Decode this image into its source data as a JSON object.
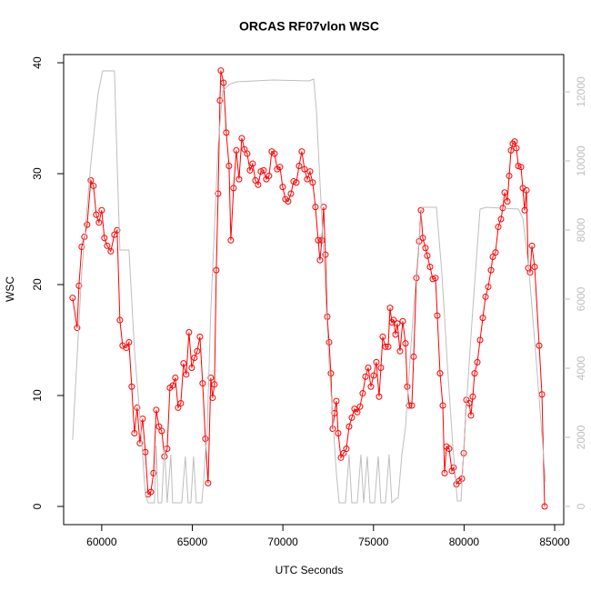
{
  "chart_data": {
    "type": "line",
    "title": "ORCAS RF07vlon WSC",
    "xlabel": "UTC Seconds",
    "ylabel": "WSC",
    "xlim": [
      57900,
      85500
    ],
    "ylim": [
      -1.64,
      40.74
    ],
    "y2lim": [
      -526,
      13079
    ],
    "xticks": [
      60000,
      65000,
      70000,
      75000,
      80000,
      85000
    ],
    "yticks": [
      0,
      10,
      20,
      30,
      40
    ],
    "y2ticks": [
      0,
      2000,
      4000,
      6000,
      8000,
      10000,
      12000
    ],
    "series": [
      {
        "color": "#ff0000",
        "marker": "circle",
        "x": [
          58394,
          58645,
          58745,
          58896,
          59046,
          59197,
          59398,
          59548,
          59699,
          59849,
          60000,
          60151,
          60301,
          60502,
          60703,
          60853,
          61004,
          61155,
          61355,
          61506,
          61657,
          61807,
          61958,
          62108,
          62259,
          62410,
          62560,
          62711,
          62861,
          63012,
          63163,
          63313,
          63464,
          63614,
          63765,
          63916,
          64066,
          64217,
          64367,
          64518,
          64669,
          64819,
          64970,
          65120,
          65271,
          65422,
          65572,
          65723,
          65873,
          66024,
          66124,
          66225,
          66325,
          66426,
          66526,
          66576,
          66727,
          66877,
          67028,
          67128,
          67279,
          67430,
          67580,
          67731,
          67881,
          68032,
          68183,
          68333,
          68484,
          68634,
          68785,
          68936,
          69086,
          69237,
          69387,
          69538,
          69689,
          69839,
          69990,
          70140,
          70291,
          70442,
          70592,
          70743,
          70893,
          71044,
          71195,
          71345,
          71496,
          71646,
          71797,
          71948,
          72048,
          72148,
          72249,
          72349,
          72450,
          72550,
          72650,
          72751,
          72851,
          72952,
          73052,
          73203,
          73353,
          73504,
          73654,
          73805,
          73956,
          74106,
          74257,
          74407,
          74558,
          74709,
          74859,
          75010,
          75160,
          75311,
          75411,
          75512,
          75662,
          75813,
          75913,
          76014,
          76114,
          76215,
          76315,
          76466,
          76616,
          76767,
          76867,
          76968,
          77118,
          77219,
          77369,
          77520,
          77620,
          77721,
          77871,
          77972,
          78122,
          78273,
          78423,
          78524,
          78674,
          78825,
          78925,
          79026,
          79176,
          79327,
          79427,
          79578,
          79729,
          79879,
          79980,
          80130,
          80281,
          80381,
          80482,
          80582,
          80733,
          80883,
          81034,
          81185,
          81335,
          81486,
          81586,
          81737,
          81887,
          82038,
          82138,
          82239,
          82389,
          82490,
          82590,
          82690,
          82791,
          82891,
          82992,
          83142,
          83243,
          83343,
          83443,
          83544,
          83644,
          83745,
          83896,
          84146,
          84297,
          84447
        ],
        "values": [
          18.8,
          16.1,
          19.9,
          23.4,
          24.3,
          25.4,
          29.4,
          28.9,
          26.3,
          25.6,
          26.7,
          24.2,
          23.5,
          23.0,
          24.5,
          24.9,
          16.8,
          14.5,
          14.3,
          14.8,
          10.8,
          6.6,
          8.9,
          5.7,
          7.9,
          4.9,
          1.1,
          1.3,
          3.0,
          8.7,
          7.2,
          6.8,
          4.5,
          5.2,
          10.7,
          10.9,
          11.6,
          8.9,
          9.3,
          12.9,
          11.9,
          15.7,
          12.5,
          13.4,
          14.0,
          15.3,
          11.1,
          6.1,
          2.1,
          11.6,
          9.8,
          11.0,
          21.3,
          28.2,
          36.6,
          39.3,
          38.2,
          33.7,
          30.7,
          24.0,
          28.7,
          32.1,
          29.5,
          33.2,
          32.2,
          31.8,
          30.3,
          30.9,
          29.4,
          29.0,
          30.2,
          30.3,
          29.5,
          29.8,
          32.0,
          31.8,
          30.4,
          30.6,
          28.8,
          27.7,
          27.5,
          28.2,
          29.3,
          29.2,
          30.7,
          32.0,
          30.4,
          29.5,
          30.2,
          29.2,
          27.0,
          24.0,
          22.2,
          24.0,
          27.0,
          22.7,
          17.1,
          14.8,
          12.0,
          7.0,
          8.4,
          9.5,
          6.6,
          4.4,
          4.8,
          5.2,
          7.2,
          8.0,
          8.8,
          8.5,
          9.0,
          10.2,
          11.7,
          12.5,
          10.8,
          11.8,
          13.0,
          9.9,
          12.5,
          15.3,
          14.4,
          14.4,
          17.9,
          16.6,
          16.8,
          15.5,
          16.5,
          14.0,
          16.7,
          14.7,
          10.8,
          9.1,
          9.1,
          13.5,
          20.6,
          23.9,
          26.7,
          24.2,
          23.3,
          22.6,
          21.6,
          20.5,
          20.6,
          17.2,
          12.0,
          9.1,
          3.0,
          5.4,
          5.2,
          3.2,
          3.5,
          2.0,
          2.3,
          2.5,
          4.8,
          9.6,
          9.3,
          8.2,
          9.9,
          12.0,
          13.0,
          15.0,
          17.0,
          18.9,
          19.8,
          21.3,
          22.5,
          22.9,
          25.2,
          25.9,
          26.9,
          28.3,
          27.5,
          29.8,
          32.1,
          32.7,
          32.9,
          32.3,
          30.7,
          30.6,
          28.7,
          26.7,
          28.5,
          21.5,
          21.1,
          23.5,
          21.6,
          14.5,
          10.1,
          0.0
        ]
      },
      {
        "color": "#bebebe",
        "axis": "y2",
        "x": [
          58394,
          58896,
          59398,
          59799,
          60050,
          60703,
          60853,
          61004,
          61506,
          61807,
          62158,
          62410,
          62560,
          62912,
          63012,
          63112,
          63313,
          63464,
          63614,
          63815,
          63916,
          64418,
          64618,
          64769,
          64920,
          65070,
          65221,
          65522,
          65622,
          65823,
          66024,
          66225,
          66426,
          66677,
          67028,
          67430,
          69438,
          71445,
          71697,
          71847,
          72199,
          72550,
          72952,
          73103,
          73453,
          73654,
          73805,
          74106,
          74307,
          74457,
          74658,
          74809,
          75060,
          75261,
          75411,
          75662,
          75863,
          76014,
          76265,
          76365,
          76566,
          76767,
          77068,
          77369,
          77671,
          78474,
          78775,
          79076,
          79377,
          79628,
          79829,
          80080,
          80482,
          80883,
          81235,
          82992,
          83243,
          83594,
          83996,
          84497
        ],
        "values": [
          1921,
          6763,
          9921,
          11947,
          12605,
          12605,
          9921,
          7421,
          7421,
          4526,
          2289,
          316,
          105,
          105,
          1763,
          105,
          105,
          1763,
          105,
          1500,
          105,
          105,
          1447,
          105,
          105,
          1447,
          105,
          105,
          710,
          2289,
          5711,
          8079,
          10447,
          12026,
          12211,
          12289,
          12342,
          12316,
          12368,
          11500,
          7816,
          4132,
          974,
          105,
          105,
          1500,
          105,
          105,
          1500,
          105,
          1447,
          105,
          105,
          1447,
          105,
          105,
          1500,
          105,
          237,
          237,
          1500,
          2289,
          4658,
          6763,
          8658,
          8658,
          6763,
          4132,
          1763,
          158,
          158,
          2553,
          5711,
          8605,
          8658,
          8605,
          8342,
          6763,
          4132,
          710
        ]
      }
    ]
  }
}
